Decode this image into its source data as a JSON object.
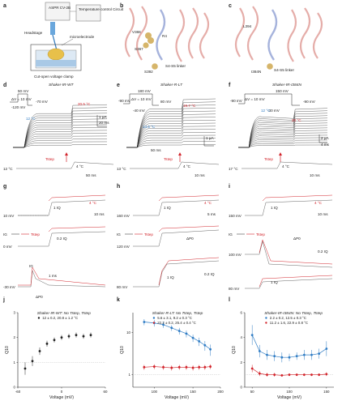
{
  "panels": {
    "a": {
      "label": "a",
      "tev_label": "Cut-open voltage clamp",
      "amp_label": "ASPR\nCV-2B",
      "circuit_label": "Temperature\ncontrol\nCircuit",
      "hs_label": "Headstage",
      "elec_label": "microelectrode"
    },
    "b": {
      "label": "b",
      "res1": "V368",
      "res2": "S392",
      "res3": "S367",
      "res4": "R4",
      "seg": "S4-S5 linker"
    },
    "c": {
      "label": "c",
      "res1": "L394",
      "res2": "I384N",
      "seg": "S4-S5 linker"
    },
    "d": {
      "label": "d",
      "title": "Shaker-IR-WT",
      "hold": "-70 mV",
      "step": "ΔV = 10 mV",
      "top": "50 mV",
      "bot": "-120 mV",
      "t_hot": "20.5 °C",
      "t_cold": "12 °C",
      "tstep": "Tstep",
      "tbase": "12 °C",
      "tpeak": "4 °C",
      "scale_i": "1 μA",
      "scale_t": "20 ms",
      "scale_t2": "50 ms"
    },
    "e": {
      "label": "e",
      "title": "Shaker-R-LT",
      "hold": "-90 mV",
      "step": "ΔV = 10 mV",
      "top": "180 mV",
      "bot": "-40 mV",
      "right": "80 mV",
      "t_hot": "19.7 °C",
      "t_cold": "13.5 °C",
      "tstep": "Tstep",
      "tbase": "13 °C",
      "tpeak": "4 °C",
      "scale_i": "1 μA",
      "scale_t": "50 ms",
      "scale_t2": "10 ms"
    },
    "f": {
      "label": "f",
      "title": "Shaker-IR-I384N",
      "hold": "-90 mV",
      "step": "ΔV = 10 mV",
      "top": "150 mV",
      "bot": "-30 mV",
      "right": "-90 mV",
      "t_hot": "20 °C",
      "t_cold": "12 °C",
      "tstep": "Tstep",
      "tbase": "17 °C",
      "tpeak": "4 °C",
      "scale_i": "2 μA",
      "scale_t": "4 ms",
      "scale_t2": "10 ms"
    },
    "g": {
      "label": "g",
      "v1": "10 mV",
      "v2": "0 mV",
      "v3": "-30 mV",
      "t": "4 °C",
      "q": "1 IQ",
      "q2": "0.2 IQ",
      "tstep": "Tstep",
      "ig": "IG",
      "dq": "ΔP0",
      "s1": "10 ms",
      "s2": "1 ms"
    },
    "h": {
      "label": "h",
      "v1": "160 mV",
      "v2": "120 mV",
      "v3": "80 mV",
      "t": "4 °C",
      "q": "1 IQ",
      "tstep": "Tstep",
      "ig": "IG",
      "dq": "ΔP0",
      "s1": "5 ms",
      "s2": "0.2 IQ"
    },
    "i": {
      "label": "i",
      "v1": "150 mV",
      "v2": "100 mV",
      "v3": "80 mV",
      "t": "4 °C",
      "q": "1 IQ",
      "tstep": "Tstep",
      "ig": "IG",
      "dq": "ΔP0",
      "s1": "10 ms",
      "s2": "0.2 IQ"
    }
  },
  "chart_data": [
    {
      "type": "scatter",
      "panel": "j",
      "title": "Shaker-IR-WT: No Tstep, Tstep",
      "legend": [
        "12 ± 0.2, 20.8 ± 1.2 °C"
      ],
      "xlabel": "Voltage (mV)",
      "ylabel": "Q10",
      "xlim": [
        -60,
        60
      ],
      "ylim": [
        0,
        3
      ],
      "xticks": [
        -60,
        0,
        60
      ],
      "yticks": [
        0,
        1,
        2,
        3
      ],
      "refline": 1,
      "series": [
        {
          "color": "#222222",
          "x": [
            -50,
            -40,
            -30,
            -20,
            -10,
            0,
            10,
            20,
            30,
            40
          ],
          "y": [
            0.75,
            1.05,
            1.45,
            1.75,
            1.9,
            2.0,
            2.05,
            2.1,
            2.05,
            2.1
          ],
          "err": [
            0.25,
            0.2,
            0.15,
            0.12,
            0.1,
            0.1,
            0.1,
            0.1,
            0.1,
            0.1
          ]
        }
      ]
    },
    {
      "type": "line",
      "panel": "k",
      "title": "Shaker-R-LT: No Tstep, Tstep",
      "legend": [
        "5.6 ± 3.1, 9.2 ± 0.3 °C",
        "22.2 ± 0.2, 25.4 ± 0.4 °C"
      ],
      "xlabel": "Voltage (mV)",
      "ylabel": "Q10",
      "xscale": "log",
      "xlim": [
        80,
        200
      ],
      "ylim": [
        0.5,
        30
      ],
      "xticks": [
        100,
        150,
        200
      ],
      "yticks": [
        1,
        10
      ],
      "refline": 1,
      "series": [
        {
          "color": "#2f7cc4",
          "x": [
            90,
            100,
            110,
            120,
            130,
            140,
            150,
            160,
            170,
            180
          ],
          "y": [
            18,
            17,
            15.5,
            13,
            11,
            9.5,
            7.5,
            6.2,
            5,
            4
          ],
          "err": [
            3,
            3,
            2.5,
            2,
            2,
            1.8,
            1.5,
            1.4,
            1.3,
            1.2
          ]
        },
        {
          "color": "#d2242b",
          "x": [
            90,
            100,
            110,
            120,
            130,
            140,
            150,
            160,
            170,
            180
          ],
          "y": [
            1.5,
            1.55,
            1.5,
            1.45,
            1.5,
            1.5,
            1.45,
            1.5,
            1.5,
            1.55
          ],
          "err": [
            0.2,
            0.2,
            0.2,
            0.2,
            0.2,
            0.2,
            0.2,
            0.2,
            0.2,
            0.2
          ]
        }
      ]
    },
    {
      "type": "line",
      "panel": "l",
      "title": "Shaker-IR-I384N: No Tstep, Tstep",
      "legend": [
        "2.2 ± 0.2, 12.5 ± 0.3 °C",
        "11.2 ± 1.6, 22.9 ± 0.8 °C"
      ],
      "xlabel": "Voltage (mV)",
      "ylabel": "Q10",
      "xlim": [
        40,
        160
      ],
      "ylim": [
        0,
        6
      ],
      "xticks": [
        50,
        100,
        150
      ],
      "yticks": [
        0,
        2,
        4,
        6
      ],
      "refline": 1,
      "series": [
        {
          "color": "#2f7cc4",
          "x": [
            50,
            60,
            70,
            80,
            90,
            100,
            110,
            120,
            130,
            140,
            150
          ],
          "y": [
            4.2,
            2.9,
            2.6,
            2.5,
            2.4,
            2.4,
            2.5,
            2.6,
            2.6,
            2.7,
            3.1
          ],
          "err": [
            0.8,
            0.5,
            0.4,
            0.4,
            0.4,
            0.3,
            0.3,
            0.4,
            0.4,
            0.4,
            0.6
          ]
        },
        {
          "color": "#d2242b",
          "x": [
            50,
            60,
            70,
            80,
            90,
            100,
            110,
            120,
            130,
            140,
            150
          ],
          "y": [
            1.5,
            1.1,
            1.0,
            1.0,
            0.95,
            1.0,
            1.0,
            1.0,
            1.0,
            1.0,
            1.05
          ],
          "err": [
            0.3,
            0.2,
            0.15,
            0.15,
            0.1,
            0.1,
            0.1,
            0.1,
            0.1,
            0.1,
            0.15
          ]
        }
      ]
    }
  ]
}
